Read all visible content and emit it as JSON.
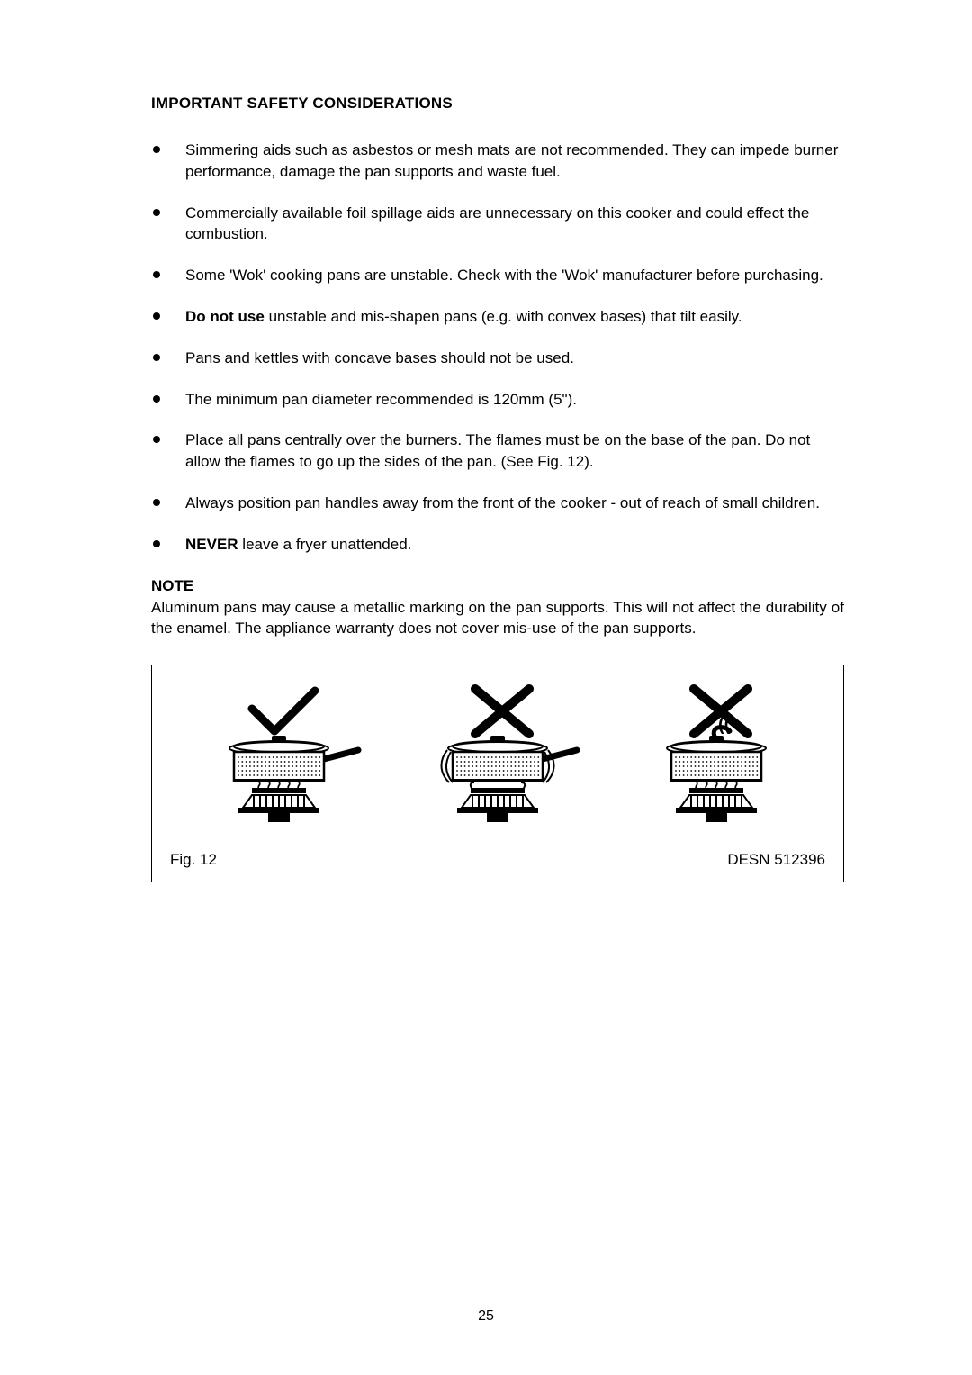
{
  "heading": "IMPORTANT SAFETY CONSIDERATIONS",
  "bullets": [
    {
      "prefix": "",
      "bold": "",
      "text": "Simmering aids such as asbestos or mesh mats are not recommended. They can impede burner performance, damage the pan supports and waste fuel."
    },
    {
      "prefix": "",
      "bold": "",
      "text": "Commercially available foil spillage aids are unnecessary on this cooker and could effect the combustion."
    },
    {
      "prefix": "",
      "bold": "",
      "text": "Some 'Wok' cooking pans are unstable. Check with the 'Wok' manufacturer before purchasing."
    },
    {
      "prefix": "",
      "bold": "Do not use",
      "text": " unstable and mis-shapen pans (e.g. with convex bases) that tilt easily."
    },
    {
      "prefix": "",
      "bold": "",
      "text": "Pans and kettles with concave bases should not be used."
    },
    {
      "prefix": "",
      "bold": "",
      "text": "The minimum pan diameter recommended is 120mm (5\")."
    },
    {
      "prefix": "",
      "bold": "",
      "text": "Place all pans centrally over the burners. The flames must be on the base of the pan. Do not allow the flames to go up the sides of the pan. (See Fig. 12)."
    },
    {
      "prefix": "",
      "bold": "",
      "text": "Always position pan handles away from the front of the cooker - out of reach of small children."
    },
    {
      "prefix": "",
      "bold": "NEVER",
      "text": " leave a fryer unattended."
    }
  ],
  "note": {
    "heading": "NOTE",
    "body": "Aluminum pans may cause a metallic marking on the pan supports. This will not affect the durability of the enamel. The appliance warranty does not cover mis-use of the pan supports."
  },
  "figure": {
    "label_left": "Fig. 12",
    "label_right": "DESN 512396",
    "items": [
      {
        "mark": "check",
        "flame_side": false,
        "handle_center": false
      },
      {
        "mark": "cross",
        "flame_side": true,
        "handle_center": false
      },
      {
        "mark": "cross",
        "flame_side": false,
        "handle_center": true
      }
    ]
  },
  "page_number": "25",
  "colors": {
    "text": "#000000",
    "bg": "#ffffff",
    "border": "#000000"
  }
}
